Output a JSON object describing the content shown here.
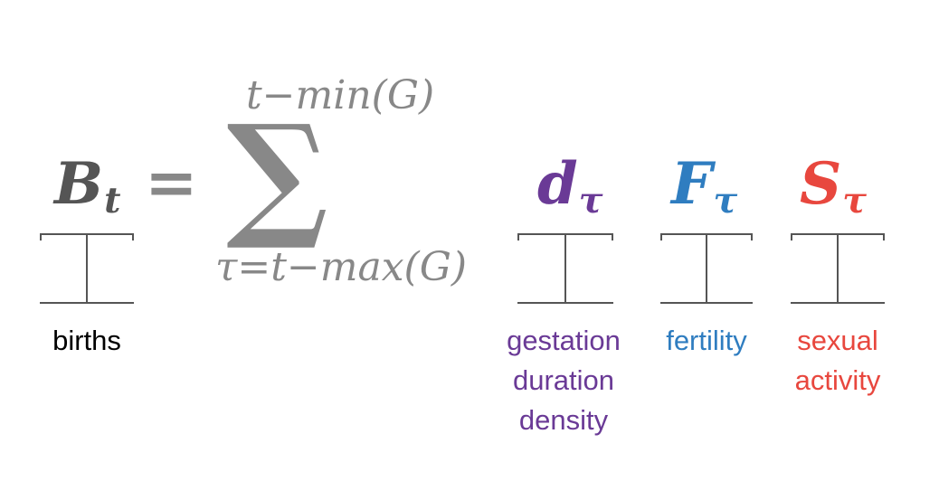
{
  "formula": {
    "lhs_var": "B",
    "lhs_sub": "t",
    "equals": "=",
    "sigma": "∑",
    "upper_limit": "t−min(G)",
    "lower_limit": "τ=t−max(G)",
    "terms": [
      {
        "var": "d",
        "sub": "τ",
        "color": "#6a3a96"
      },
      {
        "var": "F",
        "sub": "τ",
        "color": "#2f7dc0"
      },
      {
        "var": "S",
        "sub": "τ",
        "color": "#e8473e"
      }
    ]
  },
  "labels": {
    "births": {
      "text": "births",
      "color": "#000000"
    },
    "gestation": {
      "lines": [
        "gestation",
        "duration",
        "density"
      ],
      "color": "#6a3a96"
    },
    "fertility": {
      "text": "fertility",
      "color": "#2f7dc0"
    },
    "sexual": {
      "lines": [
        "sexual",
        "activity"
      ],
      "color": "#e8473e"
    }
  }
}
